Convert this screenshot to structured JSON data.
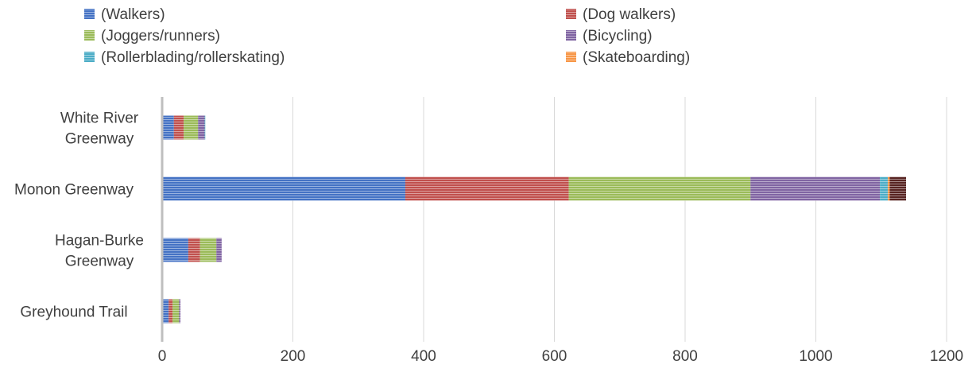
{
  "chart_data": {
    "type": "bar",
    "orientation": "horizontal",
    "stacked": true,
    "categories": [
      "White River Greenway",
      "Monon Greenway",
      "Hagan-Burke Greenway",
      "Greyhound Trail"
    ],
    "series": [
      {
        "name": "(Walkers)",
        "color": "#4472C4",
        "values": [
          18,
          372,
          40,
          10
        ]
      },
      {
        "name": "(Dog walkers)",
        "color": "#C0504D",
        "values": [
          15,
          250,
          18,
          6
        ]
      },
      {
        "name": "(Joggers/runners)",
        "color": "#9BBB59",
        "values": [
          22,
          278,
          25,
          10
        ]
      },
      {
        "name": "(Bicycling)",
        "color": "#8064A2",
        "values": [
          10,
          198,
          8,
          2
        ]
      },
      {
        "name": "(Rollerblading/rollerskating)",
        "color": "#4BACC6",
        "values": [
          1,
          12,
          0,
          0
        ]
      },
      {
        "name": "(Skateboarding)",
        "color": "#F79646",
        "values": [
          0,
          3,
          0,
          0
        ]
      },
      {
        "name": "",
        "color": "#C0504D",
        "dark": true,
        "values": [
          0,
          25,
          0,
          0
        ]
      }
    ],
    "xlim": [
      0,
      1200
    ],
    "xticks": [
      0,
      200,
      400,
      600,
      800,
      1000,
      1200
    ],
    "grid": true,
    "legend_position": "top"
  }
}
